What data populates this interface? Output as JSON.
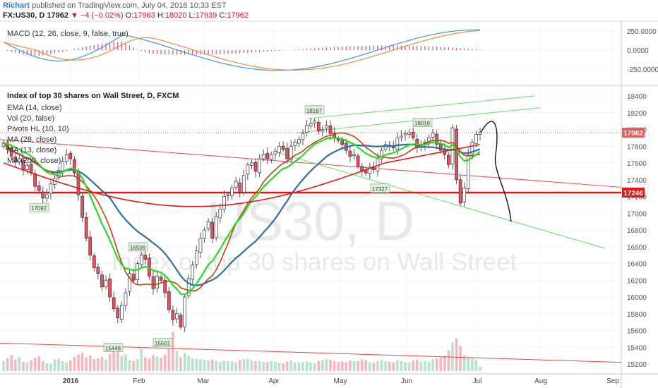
{
  "header": {
    "author": "Richart",
    "published": "published on TradingView.com, July 04, 2016 10:33 EST",
    "symbol": "FX:US30, D",
    "last": "17962",
    "change": "▼ −4 (−0.02%)",
    "o_label": "O:",
    "o": "17963",
    "h_label": "H:",
    "h": "18020",
    "l_label": "L:",
    "l": "17939",
    "c_label": "C:",
    "c": "17962"
  },
  "macd_pane": {
    "title": "MACD (12, 26, close, 9, false, true)",
    "ticks": [
      "250.0000",
      "0.0000",
      "-250.0000"
    ]
  },
  "main_pane": {
    "title": "Index of top 30 shares on Wall Street, D, FXCM",
    "indicators": [
      "EMA (14, close)",
      "Vol (20, false)",
      "Pivots HL (10, 10)",
      "MA (28, close)",
      "MA (13, close)",
      "MA (200, close)"
    ],
    "watermark_symbol": "US30, D",
    "watermark_desc": "Index of top 30 shares on Wall Street",
    "price_ticks": [
      "18400",
      "18200",
      "18000",
      "17800",
      "17600",
      "17400",
      "17200",
      "17000",
      "16800",
      "16600",
      "16400",
      "16200",
      "16000",
      "15800",
      "15600",
      "15400",
      "15200"
    ],
    "last_price_badge": "17962",
    "support_badge": "17246",
    "pivots": [
      "17092",
      "16509",
      "15448",
      "15501",
      "18167",
      "18018",
      "17327"
    ],
    "time_labels": [
      "2016",
      "Feb",
      "Mar",
      "Apr",
      "May",
      "Jun",
      "Jul",
      "Aug",
      "Sep"
    ]
  },
  "colors": {
    "up": "#53b987",
    "down": "#eb4d5c",
    "ema": "#22dd22",
    "ma28": "#2f6fa6",
    "ma13": "#c2410c",
    "ma200": "#e31a1a",
    "trend": "#66dd66",
    "support": "#ee1111"
  },
  "chart_data": {
    "type": "candlestick",
    "title": "Index of top 30 shares on Wall Street, D, FXCM",
    "x_range": [
      "2015-12-14",
      "2016-09-05"
    ],
    "y_range": [
      15100,
      18550
    ],
    "series": [
      {
        "name": "FX:US30",
        "type": "candlestick"
      },
      {
        "name": "EMA (14, close)",
        "type": "line"
      },
      {
        "name": "MA (28, close)",
        "type": "line"
      },
      {
        "name": "MA (13, close)",
        "type": "line"
      },
      {
        "name": "MA (200, close)",
        "type": "line"
      },
      {
        "name": "Vol (20, false)",
        "type": "bar"
      }
    ],
    "close": [
      17840,
      17760,
      17680,
      17610,
      17650,
      17520,
      17570,
      17480,
      17320,
      17270,
      17180,
      17220,
      17350,
      17420,
      17510,
      17620,
      17700,
      17650,
      17480,
      17220,
      16950,
      16700,
      16500,
      16350,
      16280,
      16120,
      16200,
      16000,
      15860,
      15750,
      15900,
      16050,
      16280,
      16200,
      16400,
      16500,
      16450,
      16250,
      16100,
      16250,
      16200,
      16050,
      15850,
      15730,
      15800,
      15640,
      16000,
      16220,
      16380,
      16550,
      16700,
      16800,
      16900,
      16700,
      16960,
      17050,
      17200,
      17220,
      17300,
      17380,
      17250,
      17450,
      17580,
      17600,
      17500,
      17650,
      17700,
      17650,
      17700,
      17740,
      17800,
      17760,
      17650,
      17800,
      17850,
      17880,
      17950,
      18050,
      18070,
      18100,
      17980,
      18000,
      18050,
      17950,
      17900,
      17870,
      17820,
      17750,
      17680,
      17700,
      17560,
      17500,
      17480,
      17550,
      17520,
      17650,
      17750,
      17820,
      17800,
      17780,
      17900,
      17920,
      17950,
      17960,
      17900,
      17780,
      17800,
      17850,
      17900,
      17960,
      17820,
      17750,
      17700,
      17580,
      18020,
      17400,
      17120,
      17300,
      17700,
      17850,
      17940,
      17962
    ],
    "volume": [
      0.22,
      0.28,
      0.35,
      0.25,
      0.31,
      0.2,
      0.18,
      0.24,
      0.29,
      0.33,
      0.21,
      0.17,
      0.16,
      0.26,
      0.27,
      0.22,
      0.19,
      0.23,
      0.31,
      0.36,
      0.4,
      0.3,
      0.34,
      0.26,
      0.28,
      0.31,
      0.25,
      0.38,
      0.42,
      0.55,
      0.33,
      0.36,
      0.24,
      0.22,
      0.26,
      0.48,
      0.3,
      0.27,
      0.35,
      0.32,
      0.29,
      0.36,
      0.5,
      0.85,
      0.44,
      0.3,
      0.4,
      0.33,
      0.28,
      0.27,
      0.26,
      0.24,
      0.23,
      0.25,
      0.22,
      0.2,
      0.23,
      0.22,
      0.21,
      0.19,
      0.24,
      0.26,
      0.27,
      0.23,
      0.22,
      0.21,
      0.2,
      0.19,
      0.22,
      0.2,
      0.18,
      0.17,
      0.21,
      0.23,
      0.19,
      0.18,
      0.2,
      0.21,
      0.19,
      0.17,
      0.22,
      0.24,
      0.26,
      0.25,
      0.22,
      0.2,
      0.21,
      0.19,
      0.23,
      0.21,
      0.22,
      0.26,
      0.24,
      0.19,
      0.18,
      0.22,
      0.25,
      0.21,
      0.2,
      0.19,
      0.24,
      0.22,
      0.2,
      0.19,
      0.23,
      0.25,
      0.21,
      0.22,
      0.2,
      0.26,
      0.28,
      0.3,
      0.34,
      0.45,
      0.62,
      0.72,
      0.55,
      0.35,
      0.3,
      0.28,
      0.24,
      0.1
    ],
    "support_level": 17246,
    "last_price": 17962
  }
}
